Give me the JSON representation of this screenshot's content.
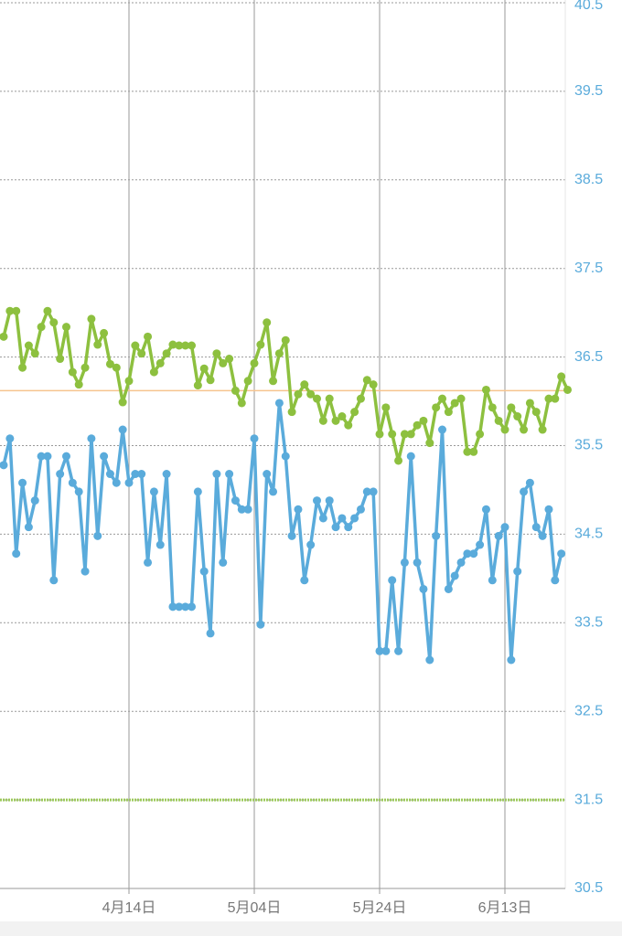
{
  "chart_data": {
    "type": "line",
    "categories": [
      null,
      null,
      null,
      null,
      null,
      null,
      null,
      null,
      null,
      null,
      null,
      null,
      null,
      null,
      null,
      null,
      null,
      null,
      null,
      null,
      "4月14日",
      null,
      null,
      null,
      null,
      null,
      null,
      null,
      null,
      null,
      null,
      null,
      null,
      null,
      null,
      null,
      null,
      null,
      null,
      null,
      "5月04日",
      null,
      null,
      null,
      null,
      null,
      null,
      null,
      null,
      null,
      null,
      null,
      null,
      null,
      null,
      null,
      null,
      null,
      null,
      null,
      "5月24日",
      null,
      null,
      null,
      null,
      null,
      null,
      null,
      null,
      null,
      null,
      null,
      null,
      null,
      null,
      null,
      null,
      null,
      null,
      null,
      "6月13日",
      null,
      null,
      null,
      null,
      null,
      null,
      null,
      null,
      null,
      null
    ],
    "series": [
      {
        "color": "#8dc03f",
        "values": [
          36.73,
          37.02,
          37.02,
          36.38,
          36.63,
          36.54,
          36.84,
          37.02,
          36.89,
          36.48,
          36.84,
          36.33,
          36.19,
          36.38,
          36.93,
          36.64,
          36.77,
          36.42,
          36.38,
          35.99,
          36.23,
          36.63,
          36.54,
          36.73,
          36.33,
          36.43,
          36.54,
          36.64,
          36.63,
          36.63,
          36.63,
          36.18,
          36.37,
          36.24,
          36.54,
          36.43,
          36.48,
          36.12,
          35.98,
          36.23,
          36.43,
          36.64,
          36.89,
          36.23,
          36.54,
          36.69,
          35.88,
          36.08,
          36.19,
          36.08,
          36.03,
          35.78,
          36.03,
          35.78,
          35.83,
          35.73,
          35.88,
          36.03,
          36.24,
          36.19,
          35.63,
          35.93,
          35.63,
          35.33,
          35.63,
          35.63,
          35.73,
          35.78,
          35.53,
          35.93,
          36.03,
          35.88,
          35.98,
          36.03,
          35.43,
          35.43,
          35.63,
          36.13,
          35.93,
          35.78,
          35.68,
          35.93,
          35.83,
          35.68,
          35.98,
          35.88,
          35.68,
          36.03,
          36.03,
          36.28,
          36.13
        ]
      },
      {
        "color": "#5aabdb",
        "values": [
          35.28,
          35.58,
          34.28,
          35.08,
          34.58,
          34.88,
          35.38,
          35.38,
          33.98,
          35.18,
          35.38,
          35.08,
          34.98,
          34.08,
          35.58,
          34.48,
          35.38,
          35.18,
          35.08,
          35.68,
          35.08,
          35.18,
          35.18,
          34.18,
          34.98,
          34.38,
          35.18,
          33.68,
          33.68,
          33.68,
          33.68,
          34.98,
          34.08,
          33.38,
          35.18,
          34.18,
          35.18,
          34.88,
          34.78,
          34.78,
          35.58,
          33.48,
          35.18,
          34.98,
          35.98,
          35.38,
          34.48,
          34.78,
          33.98,
          34.38,
          34.88,
          34.68,
          34.88,
          34.58,
          34.68,
          34.58,
          34.68,
          34.78,
          34.98,
          34.98,
          33.18,
          33.18,
          33.98,
          33.18,
          34.18,
          35.38,
          34.18,
          33.88,
          33.08,
          34.48,
          35.68,
          33.88,
          34.03,
          34.18,
          34.28,
          34.28,
          34.38,
          34.78,
          33.98,
          34.48,
          34.58,
          33.08,
          34.08,
          34.98,
          35.08,
          34.58,
          34.48,
          34.78,
          33.98,
          34.28,
          null
        ]
      }
    ],
    "ylim": [
      30.5,
      40.5
    ],
    "yticks": [
      30.5,
      31.5,
      32.5,
      33.5,
      34.5,
      35.5,
      36.5,
      37.5,
      38.5,
      39.5,
      40.5
    ],
    "grid": true,
    "reference_lines": [
      {
        "value": 36.12,
        "color": "#f6c48e",
        "style": "solid"
      },
      {
        "value": 31.5,
        "color": "#9cc95a",
        "style": "dotted"
      }
    ],
    "tick_label_color": "#5aabdb"
  }
}
